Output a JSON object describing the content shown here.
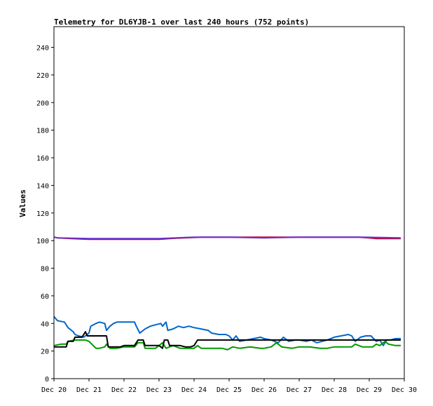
{
  "chart_data": {
    "type": "line",
    "title": "Telemetry for DL6YJB-1 over last 240 hours (752 points)",
    "xlabel": "",
    "ylabel": "Values",
    "xlim": [
      0,
      10
    ],
    "ylim": [
      0,
      255
    ],
    "yticks": [
      0,
      20,
      40,
      60,
      80,
      100,
      120,
      140,
      160,
      180,
      200,
      220,
      240
    ],
    "xticks": [
      {
        "x": 0,
        "label": "Dec 20"
      },
      {
        "x": 1,
        "label": "Dec 21"
      },
      {
        "x": 2,
        "label": "Dec 22"
      },
      {
        "x": 3,
        "label": "Dec 23"
      },
      {
        "x": 4,
        "label": "Dec 24"
      },
      {
        "x": 5,
        "label": "Dec 25"
      },
      {
        "x": 6,
        "label": "Dec 26"
      },
      {
        "x": 7,
        "label": "Dec 27"
      },
      {
        "x": 8,
        "label": "Dec 28"
      },
      {
        "x": 9,
        "label": "Dec 29"
      },
      {
        "x": 10,
        "label": "Dec 30"
      }
    ],
    "grid": false,
    "series": [
      {
        "color": "#cc0033",
        "points": [
          [
            0,
            102.5
          ],
          [
            0.1,
            102
          ],
          [
            0.5,
            101.5
          ],
          [
            1.0,
            101
          ],
          [
            2.0,
            101
          ],
          [
            3.0,
            101
          ],
          [
            3.3,
            101.5
          ],
          [
            3.7,
            102
          ],
          [
            4.2,
            102.5
          ],
          [
            5.5,
            102.5
          ],
          [
            6.2,
            102.5
          ],
          [
            7.5,
            102.5
          ],
          [
            8.7,
            102.5
          ],
          [
            9.0,
            102
          ],
          [
            9.2,
            101.5
          ],
          [
            9.9,
            101.5
          ]
        ]
      },
      {
        "color": "#6633cc",
        "points": [
          [
            0,
            102.5
          ],
          [
            0.1,
            102
          ],
          [
            1.0,
            101.5
          ],
          [
            2.0,
            101.5
          ],
          [
            3.0,
            101.5
          ],
          [
            4.0,
            102.5
          ],
          [
            5.0,
            102.5
          ],
          [
            6.0,
            102
          ],
          [
            7.0,
            102.5
          ],
          [
            8.0,
            102.5
          ],
          [
            8.8,
            102.5
          ],
          [
            9.9,
            102
          ]
        ]
      },
      {
        "color": "#0066cc",
        "points": [
          [
            0,
            45
          ],
          [
            0.1,
            42
          ],
          [
            0.3,
            41
          ],
          [
            0.4,
            37
          ],
          [
            0.55,
            34
          ],
          [
            0.6,
            32
          ],
          [
            0.7,
            31
          ],
          [
            0.85,
            30
          ],
          [
            1.0,
            33
          ],
          [
            1.05,
            38
          ],
          [
            1.2,
            40
          ],
          [
            1.3,
            41
          ],
          [
            1.45,
            40
          ],
          [
            1.5,
            35
          ],
          [
            1.6,
            38
          ],
          [
            1.7,
            40
          ],
          [
            1.8,
            41
          ],
          [
            2.0,
            41
          ],
          [
            2.3,
            41
          ],
          [
            2.35,
            38
          ],
          [
            2.45,
            33
          ],
          [
            2.6,
            36
          ],
          [
            2.75,
            38
          ],
          [
            2.9,
            39
          ],
          [
            3.05,
            40
          ],
          [
            3.1,
            38
          ],
          [
            3.2,
            41
          ],
          [
            3.25,
            35
          ],
          [
            3.4,
            36
          ],
          [
            3.55,
            38
          ],
          [
            3.7,
            37
          ],
          [
            3.85,
            38
          ],
          [
            4.0,
            37
          ],
          [
            4.2,
            36
          ],
          [
            4.4,
            35
          ],
          [
            4.5,
            33
          ],
          [
            4.7,
            32
          ],
          [
            4.9,
            32
          ],
          [
            5.0,
            31
          ],
          [
            5.1,
            28
          ],
          [
            5.2,
            31
          ],
          [
            5.3,
            27
          ],
          [
            5.5,
            28
          ],
          [
            5.7,
            29
          ],
          [
            5.9,
            30
          ],
          [
            6.0,
            29
          ],
          [
            6.2,
            28
          ],
          [
            6.4,
            26
          ],
          [
            6.55,
            30
          ],
          [
            6.7,
            27
          ],
          [
            6.9,
            28
          ],
          [
            7.0,
            28
          ],
          [
            7.2,
            27
          ],
          [
            7.35,
            28
          ],
          [
            7.5,
            26
          ],
          [
            7.8,
            28
          ],
          [
            8.0,
            30
          ],
          [
            8.2,
            31
          ],
          [
            8.4,
            32
          ],
          [
            8.5,
            31
          ],
          [
            8.6,
            27
          ],
          [
            8.75,
            30
          ],
          [
            8.9,
            31
          ],
          [
            9.05,
            31
          ],
          [
            9.2,
            27
          ],
          [
            9.3,
            28
          ],
          [
            9.4,
            24
          ],
          [
            9.5,
            28
          ],
          [
            9.6,
            28
          ],
          [
            9.75,
            29
          ],
          [
            9.9,
            29
          ]
        ]
      },
      {
        "color": "#009900",
        "points": [
          [
            0,
            24
          ],
          [
            0.2,
            25
          ],
          [
            0.35,
            25
          ],
          [
            0.4,
            27
          ],
          [
            0.6,
            28
          ],
          [
            0.9,
            28
          ],
          [
            1.0,
            27
          ],
          [
            1.2,
            22
          ],
          [
            1.3,
            22
          ],
          [
            1.45,
            23
          ],
          [
            1.5,
            25
          ],
          [
            1.6,
            22
          ],
          [
            1.8,
            22
          ],
          [
            2.0,
            23
          ],
          [
            2.3,
            23
          ],
          [
            2.4,
            26
          ],
          [
            2.55,
            26
          ],
          [
            2.6,
            22
          ],
          [
            2.9,
            22
          ],
          [
            3.1,
            26
          ],
          [
            3.2,
            22
          ],
          [
            3.4,
            24
          ],
          [
            3.6,
            22
          ],
          [
            3.8,
            22
          ],
          [
            4.0,
            22
          ],
          [
            4.1,
            24
          ],
          [
            4.2,
            22
          ],
          [
            4.5,
            22
          ],
          [
            4.8,
            22
          ],
          [
            4.95,
            21
          ],
          [
            5.1,
            23
          ],
          [
            5.3,
            22
          ],
          [
            5.6,
            23
          ],
          [
            5.9,
            22
          ],
          [
            6.0,
            22
          ],
          [
            6.2,
            23
          ],
          [
            6.35,
            26
          ],
          [
            6.5,
            23
          ],
          [
            6.8,
            22
          ],
          [
            7.0,
            23
          ],
          [
            7.3,
            23
          ],
          [
            7.6,
            22
          ],
          [
            7.8,
            22
          ],
          [
            8.0,
            23
          ],
          [
            8.3,
            23
          ],
          [
            8.5,
            23
          ],
          [
            8.6,
            25
          ],
          [
            8.8,
            23
          ],
          [
            9.1,
            23
          ],
          [
            9.2,
            25
          ],
          [
            9.3,
            24
          ],
          [
            9.45,
            27
          ],
          [
            9.55,
            25
          ],
          [
            9.75,
            24
          ],
          [
            9.9,
            24
          ]
        ]
      },
      {
        "color": "#000000",
        "points": [
          [
            0,
            23
          ],
          [
            0.35,
            23
          ],
          [
            0.4,
            27
          ],
          [
            0.55,
            27
          ],
          [
            0.6,
            30
          ],
          [
            0.8,
            30
          ],
          [
            0.9,
            34
          ],
          [
            0.95,
            31
          ],
          [
            1.5,
            31
          ],
          [
            1.55,
            23
          ],
          [
            1.9,
            23
          ],
          [
            2.0,
            24
          ],
          [
            2.3,
            24
          ],
          [
            2.4,
            28
          ],
          [
            2.55,
            28
          ],
          [
            2.6,
            24
          ],
          [
            3.0,
            24
          ],
          [
            3.1,
            22
          ],
          [
            3.15,
            28
          ],
          [
            3.25,
            28
          ],
          [
            3.3,
            24
          ],
          [
            3.6,
            24
          ],
          [
            3.75,
            23
          ],
          [
            3.9,
            23
          ],
          [
            4.0,
            24
          ],
          [
            4.1,
            28
          ],
          [
            4.5,
            28
          ],
          [
            5.0,
            28
          ],
          [
            5.5,
            28
          ],
          [
            6.0,
            28
          ],
          [
            6.5,
            28
          ],
          [
            7.0,
            28
          ],
          [
            7.5,
            28
          ],
          [
            8.0,
            28
          ],
          [
            8.5,
            28
          ],
          [
            9.0,
            28
          ],
          [
            9.5,
            28
          ],
          [
            9.9,
            28
          ]
        ]
      }
    ]
  }
}
